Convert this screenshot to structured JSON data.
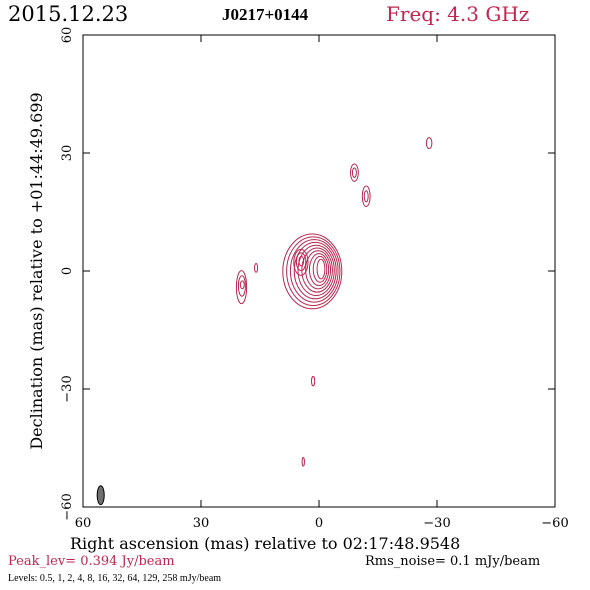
{
  "header": {
    "date": "2015.12.23",
    "source": "J0217+0144",
    "freq": "Freq: 4.3 GHz"
  },
  "footer": {
    "peak": "Peak_lev=  0.394 Jy/beam",
    "rms": "Rms_noise=  0.1 mJy/beam",
    "levels": "Levels: 0.5,   1,   2,   4,   8,  16,  32,  64, 129, 258 mJy/beam"
  },
  "colors": {
    "contour": "#b8274f",
    "beam": "#707070",
    "accent": "#c2254d"
  },
  "chart_data": {
    "type": "contour",
    "xlabel": "Right ascension (mas) relative to 02:17:48.9548",
    "ylabel": "Declination (mas) relative to +01:44:49.699",
    "xlim": [
      60,
      -60
    ],
    "ylim": [
      -60,
      60
    ],
    "x_ticks": [
      60,
      30,
      0,
      -30,
      -60
    ],
    "x_tick_labels": [
      "60",
      "30",
      "0",
      "−30",
      "−60"
    ],
    "y_ticks": [
      -60,
      -30,
      0,
      30,
      60
    ],
    "y_tick_labels": [
      "−60",
      "−30",
      "0",
      "30",
      "60"
    ],
    "contour_levels_mJy": [
      0.5,
      1,
      2,
      4,
      8,
      16,
      32,
      64,
      129,
      258
    ],
    "beam": {
      "x": 55.5,
      "y": -57,
      "major": 2.4,
      "minor": 0.9,
      "pa_deg": 0
    },
    "components": [
      {
        "name": "core",
        "x": -0.5,
        "y": 0.5,
        "levels": 10,
        "rx": 1.0,
        "ry": 2.5,
        "max_rx": 7.5,
        "max_ry": 9.5,
        "ox": 2.2,
        "oy": -0.6
      },
      {
        "name": "inner-knot",
        "x": 4.5,
        "y": 2.5,
        "levels": 3,
        "rx": 0.6,
        "ry": 1.2,
        "max_rx": 1.8,
        "max_ry": 3.3,
        "ox": 0.1,
        "oy": -0.3
      },
      {
        "name": "east-knot",
        "x": 19.5,
        "y": -3.5,
        "levels": 3,
        "rx": 0.5,
        "ry": 1.0,
        "max_rx": 1.3,
        "max_ry": 4.2,
        "ox": 0.2,
        "oy": -0.6
      },
      {
        "name": "east-blob",
        "x": 16.0,
        "y": 0.8,
        "levels": 1,
        "rx": 0.4,
        "ry": 1.1,
        "max_rx": 0.4,
        "max_ry": 1.1,
        "ox": 0,
        "oy": 0
      },
      {
        "name": "jet-1",
        "x": -9.0,
        "y": 25.0,
        "levels": 2,
        "rx": 0.5,
        "ry": 1.2,
        "max_rx": 1.0,
        "max_ry": 2.2,
        "ox": 0,
        "oy": 0
      },
      {
        "name": "jet-2",
        "x": -12.0,
        "y": 19.0,
        "levels": 2,
        "rx": 0.5,
        "ry": 1.4,
        "max_rx": 1.0,
        "max_ry": 2.6,
        "ox": 0,
        "oy": 0
      },
      {
        "name": "jet-3",
        "x": -28.0,
        "y": 32.5,
        "levels": 1,
        "rx": 0.7,
        "ry": 1.4,
        "max_rx": 0.7,
        "max_ry": 1.4,
        "ox": 0,
        "oy": 0
      },
      {
        "name": "south-1",
        "x": 1.5,
        "y": -28.0,
        "levels": 1,
        "rx": 0.4,
        "ry": 1.2,
        "max_rx": 0.4,
        "max_ry": 1.2,
        "ox": 0,
        "oy": 0
      },
      {
        "name": "south-2",
        "x": 4.0,
        "y": -48.5,
        "levels": 1,
        "rx": 0.3,
        "ry": 1.1,
        "max_rx": 0.3,
        "max_ry": 1.1,
        "ox": 0,
        "oy": 0
      }
    ]
  }
}
